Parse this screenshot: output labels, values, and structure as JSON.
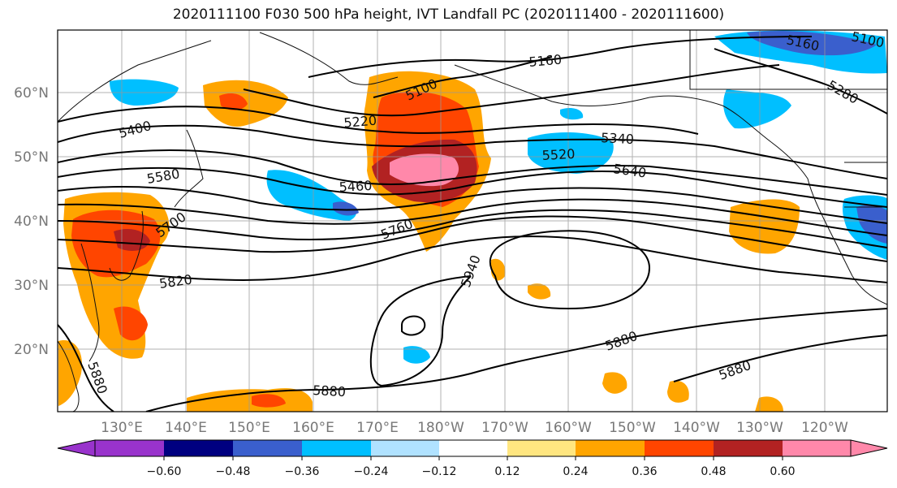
{
  "title": "2020111100 F030 500 hPa height, IVT Landfall PC (2020111400 - 2020111600)",
  "lat_labels": [
    {
      "label": "60°N",
      "lat": 60
    },
    {
      "label": "50°N",
      "lat": 50
    },
    {
      "label": "40°N",
      "lat": 40
    },
    {
      "label": "30°N",
      "lat": 30
    },
    {
      "label": "20°N",
      "lat": 20
    }
  ],
  "lon_labels": [
    "130°E",
    "140°E",
    "150°E",
    "160°E",
    "170°E",
    "180°W",
    "170°W",
    "160°W",
    "150°W",
    "140°W",
    "130°W",
    "120°W"
  ],
  "contour_labels": [
    "5160",
    "5100",
    "5160",
    "5280",
    "5220",
    "5100",
    "5400",
    "5340",
    "5520",
    "5640",
    "5580",
    "5460",
    "5760",
    "5700",
    "5940",
    "5820",
    "5880",
    "5880",
    "5880",
    "5880"
  ],
  "colorbar": {
    "ticks": [
      "−0.60",
      "−0.48",
      "−0.36",
      "−0.24",
      "−0.12",
      "0.12",
      "0.24",
      "0.36",
      "0.48",
      "0.60"
    ],
    "colors": [
      "#9933cc",
      "#000080",
      "#3a5fcd",
      "#00bfff",
      "#b0e2ff",
      "#ffffff",
      "#ffe680",
      "#ffa500",
      "#ff4500",
      "#b22222",
      "#ff88aa"
    ]
  },
  "colors": {
    "cyan": "#00bfff",
    "light_blue": "#b0e2ff",
    "blue": "#3a5fcd",
    "yellow": "#ffe680",
    "orange": "#ffa500",
    "red_orange": "#ff4500",
    "dark_red": "#b22222",
    "pink": "#ff88aa"
  }
}
